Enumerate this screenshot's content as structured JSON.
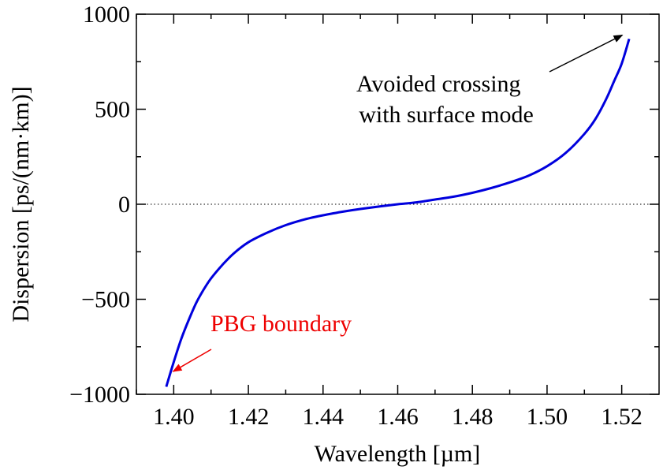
{
  "chart_data": {
    "type": "line",
    "xlabel": "Wavelength [µm]",
    "ylabel": "Dispersion  [ps/(nm·km)]",
    "xlim": [
      1.39,
      1.53
    ],
    "ylim": [
      -1000,
      1000
    ],
    "x_ticks": [
      1.4,
      1.42,
      1.44,
      1.46,
      1.48,
      1.5,
      1.52
    ],
    "x_tick_labels": [
      "1.40",
      "1.42",
      "1.44",
      "1.46",
      "1.48",
      "1.50",
      "1.52"
    ],
    "y_ticks": [
      -1000,
      -500,
      0,
      500,
      1000
    ],
    "y_tick_labels": [
      "−1000",
      "−500",
      "0",
      "500",
      "1000"
    ],
    "zero_line": true,
    "grid": false,
    "series": [
      {
        "color": "#0000dd",
        "x": [
          1.398,
          1.4,
          1.402,
          1.404,
          1.406,
          1.408,
          1.41,
          1.413,
          1.416,
          1.42,
          1.425,
          1.43,
          1.435,
          1.44,
          1.445,
          1.45,
          1.455,
          1.46,
          1.465,
          1.47,
          1.475,
          1.48,
          1.485,
          1.49,
          1.495,
          1.5,
          1.505,
          1.51,
          1.513,
          1.516,
          1.518,
          1.52,
          1.522
        ],
        "y": [
          -960,
          -830,
          -710,
          -610,
          -520,
          -450,
          -390,
          -320,
          -260,
          -200,
          -150,
          -110,
          -80,
          -58,
          -40,
          -25,
          -12,
          0,
          10,
          25,
          40,
          60,
          85,
          115,
          150,
          200,
          270,
          370,
          450,
          560,
          650,
          740,
          870
        ]
      }
    ],
    "annotations": [
      {
        "text_lines": [
          "Avoided crossing",
          "with surface mode"
        ],
        "color": "#000000",
        "arrow_to": [
          1.521,
          890
        ]
      },
      {
        "text_lines": [
          "PBG boundary"
        ],
        "color": "#ee0000",
        "arrow_to": [
          1.399,
          -880
        ]
      }
    ]
  }
}
